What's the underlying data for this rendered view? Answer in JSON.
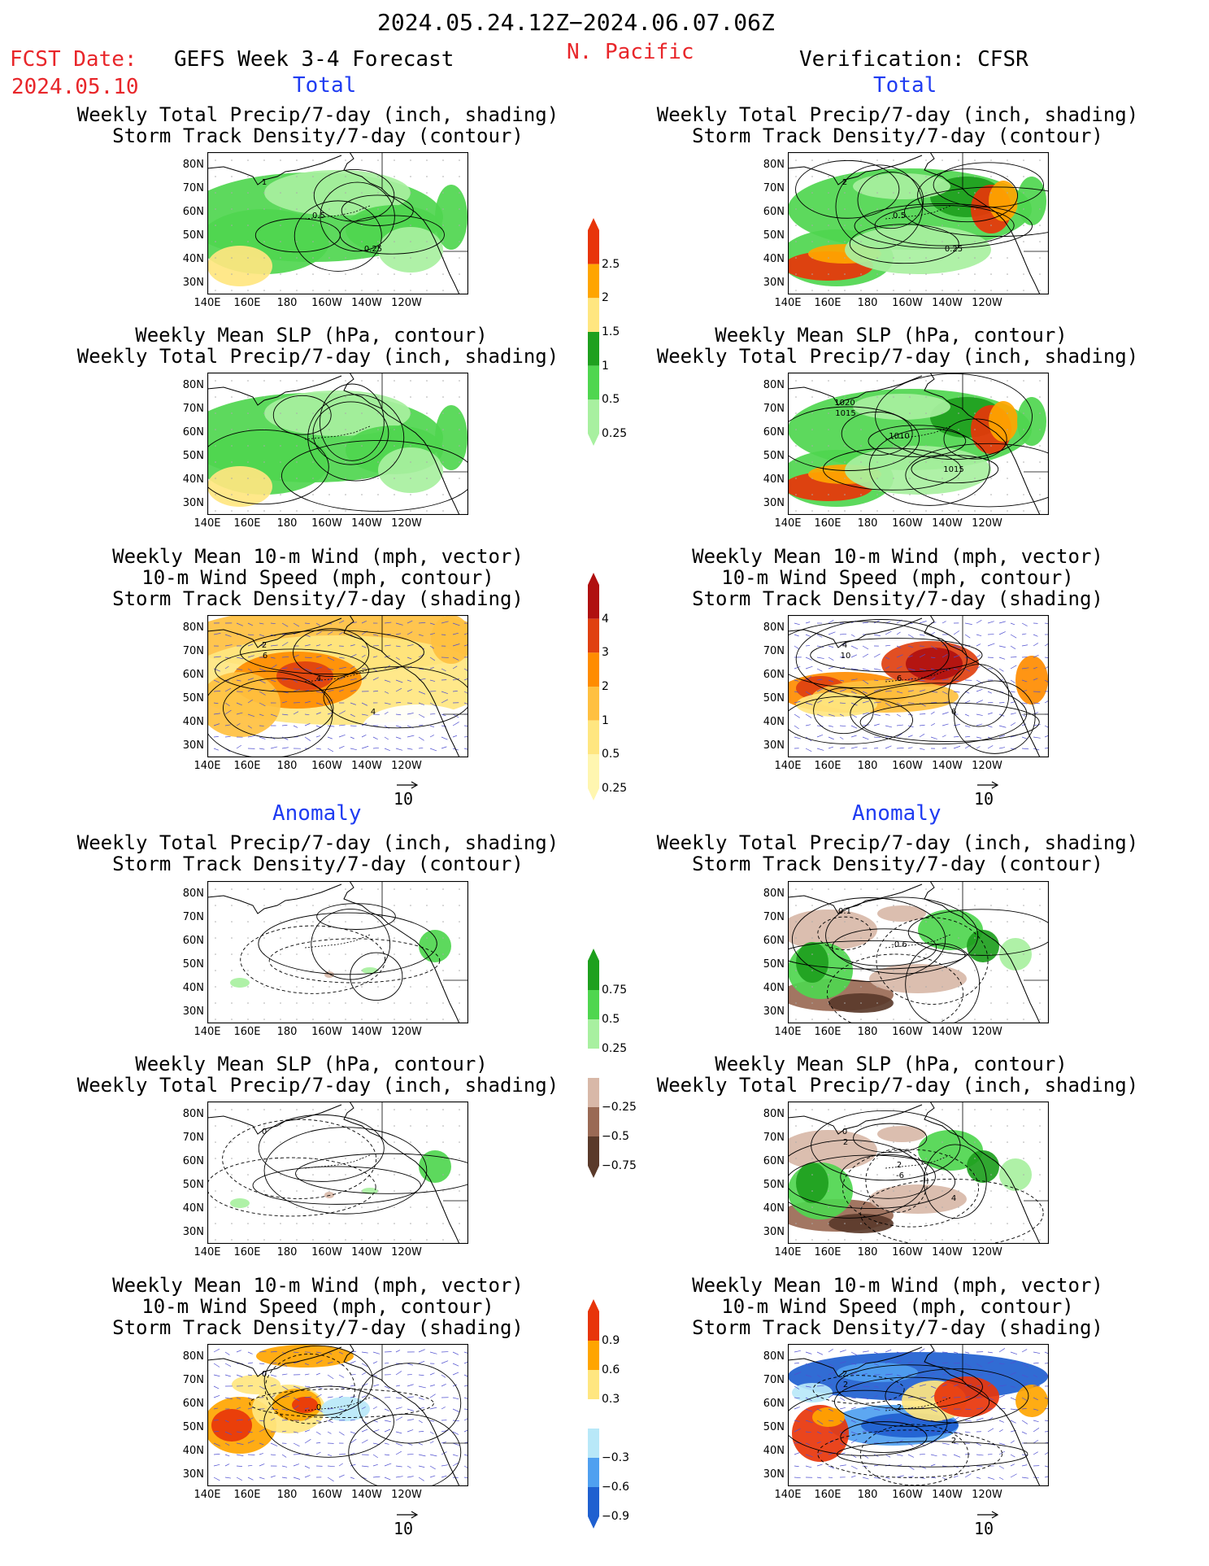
{
  "header": {
    "date_range": "2024.05.24.12Z−2024.06.07.06Z",
    "fcst_label": "FCST Date:",
    "fcst_date": "2024.05.10",
    "model_label": "GEFS Week 3-4 Forecast",
    "region": "N. Pacific",
    "verification": "Verification: CFSR"
  },
  "sections": {
    "total": "Total",
    "anomaly": "Anomaly"
  },
  "titles": {
    "precip_storm": [
      "Weekly Total Precip/7-day (inch, shading)",
      "Storm Track Density/7-day (contour)"
    ],
    "slp_precip": [
      "Weekly Mean SLP (hPa, contour)",
      "Weekly Total Precip/7-day (inch, shading)"
    ],
    "wind_storm": [
      "Weekly Mean 10-m Wind (mph, vector)",
      "10-m Wind Speed (mph, contour)",
      "Storm Track Density/7-day (shading)"
    ]
  },
  "axes": {
    "lat_labels": [
      "80N",
      "70N",
      "60N",
      "50N",
      "40N",
      "30N"
    ],
    "lon_labels": [
      "140E",
      "160E",
      "180",
      "160W",
      "140W",
      "120W"
    ]
  },
  "vector_scale": "10",
  "colorbars": {
    "precip_total": {
      "labels": [
        "2.5",
        "2",
        "1.5",
        "1",
        "0.5",
        "0.25"
      ],
      "colors": [
        "#a8f0a0",
        "#4fd64f",
        "#1ea01e",
        "#ffe680",
        "#ffa500",
        "#e8350a"
      ]
    },
    "storm_total": {
      "labels": [
        "4",
        "3",
        "2",
        "1",
        "0.5",
        "0.25"
      ],
      "colors": [
        "#fff6b0",
        "#ffe680",
        "#ffc040",
        "#ff8c00",
        "#e04010",
        "#b01010"
      ]
    },
    "precip_anom": {
      "labels": [
        "0.75",
        "0.5",
        "0.25",
        "−0.25",
        "−0.5",
        "−0.75"
      ],
      "colors": [
        "#5a3a2a",
        "#9a6a55",
        "#d8b8a8",
        "#ffffff",
        "#a8f0a0",
        "#4fd64f",
        "#1ea01e"
      ]
    },
    "storm_anom": {
      "labels": [
        "0.9",
        "0.6",
        "0.3",
        "−0.3",
        "−0.6",
        "−0.9"
      ],
      "colors": [
        "#1f60d0",
        "#4fa0f0",
        "#b8e8f8",
        "#ffffff",
        "#ffe680",
        "#ffa500",
        "#e8350a"
      ]
    }
  },
  "contour_labels": {
    "p1L": [
      "1",
      "0.5",
      "0.25"
    ],
    "p1R": [
      "2",
      "0.5",
      "0.25"
    ],
    "p2R": [
      "1020",
      "1010",
      "1015",
      "1015"
    ],
    "p3L": [
      "2",
      "4",
      "4",
      "6"
    ],
    "p3R": [
      "4",
      "6",
      "6",
      "10"
    ],
    "p4R": [
      "0.1",
      "-0.6"
    ],
    "p5L": [
      "0"
    ],
    "p5R": [
      "0",
      "2",
      "4",
      "2",
      "-6"
    ],
    "p6L": [
      "0",
      "0"
    ],
    "p6R": [
      "2",
      "2",
      "2",
      "2"
    ]
  }
}
